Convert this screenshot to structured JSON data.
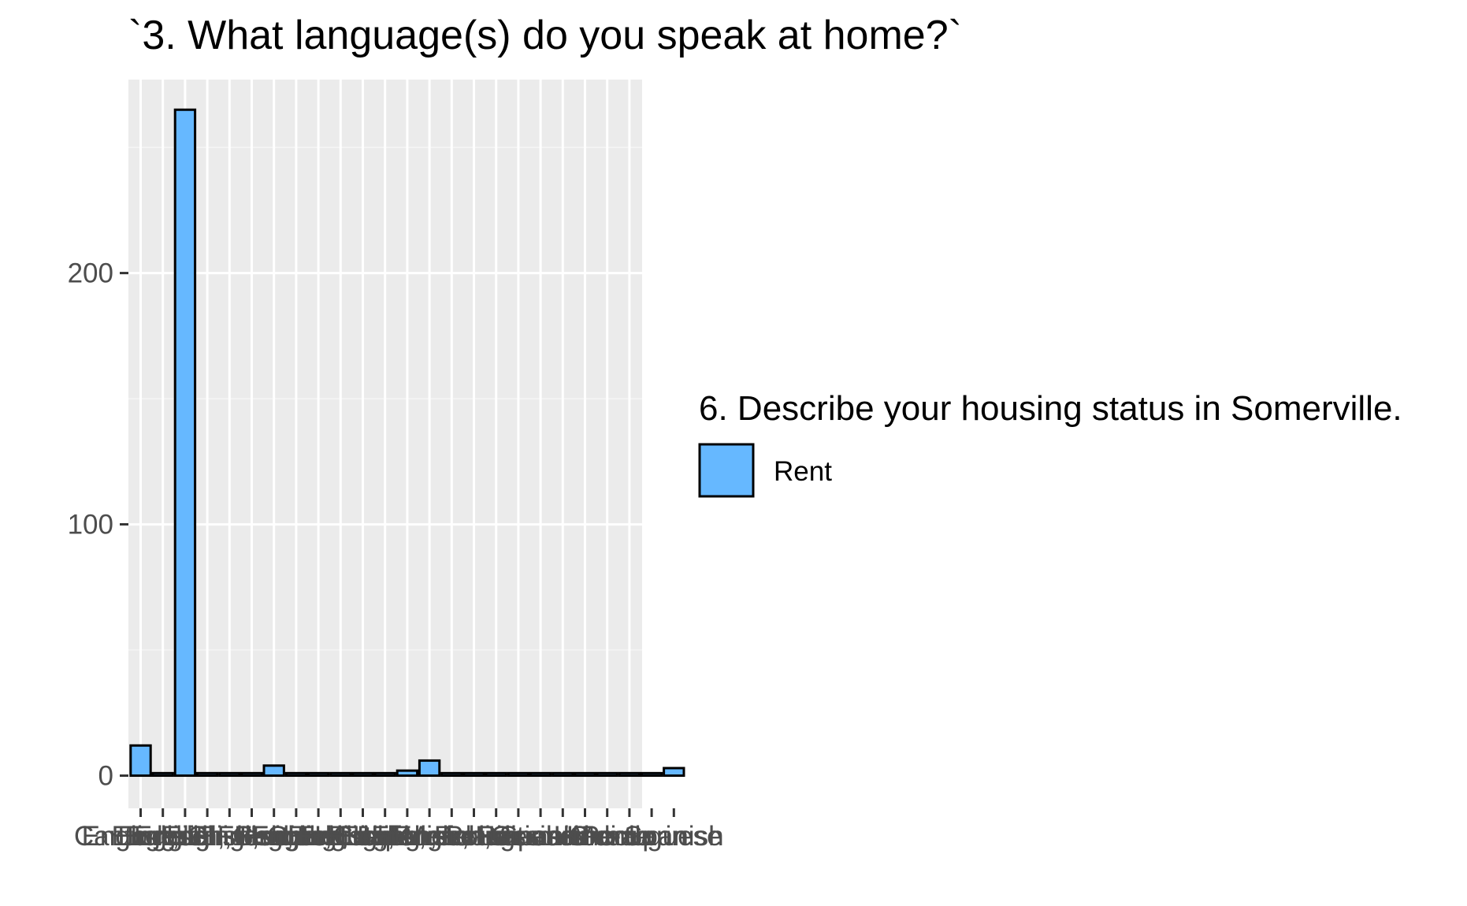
{
  "chart_data": {
    "type": "bar",
    "title": "`3. What language(s) do you speak at home?`",
    "xlabel": "",
    "ylabel": "",
    "ylim": [
      -13,
      277
    ],
    "y_ticks": [
      0,
      100,
      200
    ],
    "grid": true,
    "legend_position": "right",
    "legend": {
      "title": "6. Describe your housing status in Somerville.",
      "entries": [
        {
          "label": "Rent",
          "color": "#66b8ff"
        }
      ]
    },
    "categories": [
      "Cantonese",
      "English",
      "English, Chinese",
      "English, French",
      "English, German",
      "English, Greek",
      "English, Haitian Creole",
      "English, Hebrew",
      "English, Hindi",
      "English, Italian",
      "English, Japanese",
      "English, Korean",
      "English, Mandarin",
      "English, Polish",
      "English, Portuguese",
      "English, Russian",
      "English, Spanish",
      "French",
      "German",
      "Haitian Creole",
      "Hindi",
      "Korean",
      "Mandarin",
      "Portuguese",
      "Spanish"
    ],
    "tick_texts": [
      "Cantonese",
      "English",
      "English, Chinese",
      "English, French",
      "English, German",
      "English, Greek",
      "English, Haitian Creole",
      "English, Hebrew",
      "English, Hindi",
      "English, Italian",
      "English, Japanese",
      "English, Korean",
      "English, Mandarin",
      "English, Polish",
      "English, Portuguese",
      "English, Russian",
      "English, Spanish",
      "French",
      "German",
      "Haitian Creole",
      "Hindi",
      "Korean",
      "Mandarin",
      "Portuguese",
      "Spanish"
    ],
    "series": [
      {
        "values": [
          12,
          1,
          265,
          1,
          1,
          1,
          4,
          1,
          1,
          1,
          1,
          1,
          2,
          6,
          1,
          1,
          1,
          1,
          1,
          1,
          1,
          1,
          1,
          1,
          3
        ]
      }
    ],
    "colors": {
      "bar_fill": "#66b8ff",
      "bar_stroke": "#000000",
      "panel_bg": "#ebebeb",
      "grid_major": "#ffffff",
      "grid_minor": "#f5f5f5",
      "axis_text": "#4d4d4d"
    }
  }
}
